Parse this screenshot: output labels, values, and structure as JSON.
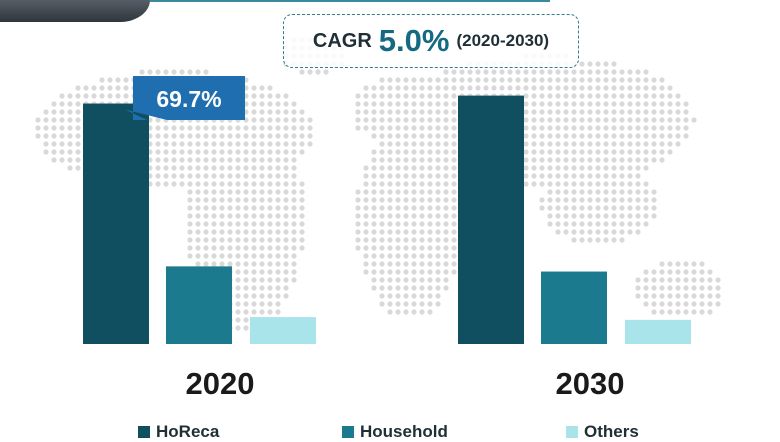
{
  "header": {
    "cagr_label": "CAGR",
    "cagr_value": "5.0%",
    "cagr_period": "(2020-2030)"
  },
  "callout": {
    "text": "69.7%"
  },
  "colors": {
    "horeca": "#0f4f5f",
    "household": "#1b7a8e",
    "others": "#a9e4ea",
    "callout": "#1f6fb0",
    "map_dots": "#d9d9d9"
  },
  "chart_data": {
    "type": "bar",
    "categories": [
      "2020",
      "2030"
    ],
    "series": [
      {
        "name": "HoReca",
        "values": [
          69.7,
          72.0
        ]
      },
      {
        "name": "Household",
        "values": [
          22.5,
          21.0
        ]
      },
      {
        "name": "Others",
        "values": [
          7.8,
          7.0
        ]
      }
    ],
    "ylim": [
      0,
      80
    ],
    "grid": false,
    "legend": "bottom",
    "annotations": [
      {
        "category": "2020",
        "series": "HoReca",
        "text": "69.7%"
      }
    ]
  }
}
